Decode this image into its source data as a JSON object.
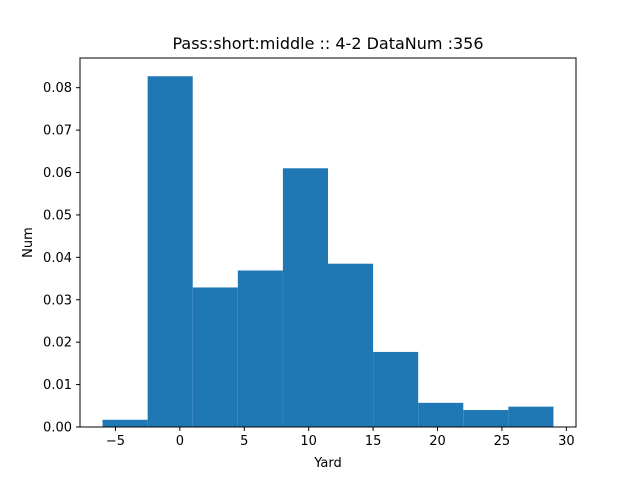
{
  "chart_data": {
    "type": "bar",
    "title": "Pass:short:middle :: 4-2    DataNum :356",
    "xlabel": "Yard",
    "ylabel": "Num",
    "xlim": [
      -7.75,
      30.75
    ],
    "ylim": [
      0,
      0.087
    ],
    "grid": false,
    "legend": "none",
    "bar_color": "#1f77b4",
    "bins": [
      {
        "x0": -6.0,
        "x1": -2.5,
        "value": 0.0017
      },
      {
        "x0": -2.5,
        "x1": 1.0,
        "value": 0.0827
      },
      {
        "x0": 1.0,
        "x1": 4.5,
        "value": 0.0329
      },
      {
        "x0": 4.5,
        "x1": 8.0,
        "value": 0.0369
      },
      {
        "x0": 8.0,
        "x1": 11.5,
        "value": 0.061
      },
      {
        "x0": 11.5,
        "x1": 15.0,
        "value": 0.0385
      },
      {
        "x0": 15.0,
        "x1": 18.5,
        "value": 0.0177
      },
      {
        "x0": 18.5,
        "x1": 22.0,
        "value": 0.0057
      },
      {
        "x0": 22.0,
        "x1": 25.5,
        "value": 0.004
      },
      {
        "x0": 25.5,
        "x1": 29.0,
        "value": 0.0048
      }
    ],
    "x_ticks": [
      {
        "value": -5,
        "label": "−5"
      },
      {
        "value": 0,
        "label": "0"
      },
      {
        "value": 5,
        "label": "5"
      },
      {
        "value": 10,
        "label": "10"
      },
      {
        "value": 15,
        "label": "15"
      },
      {
        "value": 20,
        "label": "20"
      },
      {
        "value": 25,
        "label": "25"
      },
      {
        "value": 30,
        "label": "30"
      }
    ],
    "y_ticks": [
      {
        "value": 0.0,
        "label": "0.00"
      },
      {
        "value": 0.01,
        "label": "0.01"
      },
      {
        "value": 0.02,
        "label": "0.02"
      },
      {
        "value": 0.03,
        "label": "0.03"
      },
      {
        "value": 0.04,
        "label": "0.04"
      },
      {
        "value": 0.05,
        "label": "0.05"
      },
      {
        "value": 0.06,
        "label": "0.06"
      },
      {
        "value": 0.07,
        "label": "0.07"
      },
      {
        "value": 0.08,
        "label": "0.08"
      }
    ]
  }
}
